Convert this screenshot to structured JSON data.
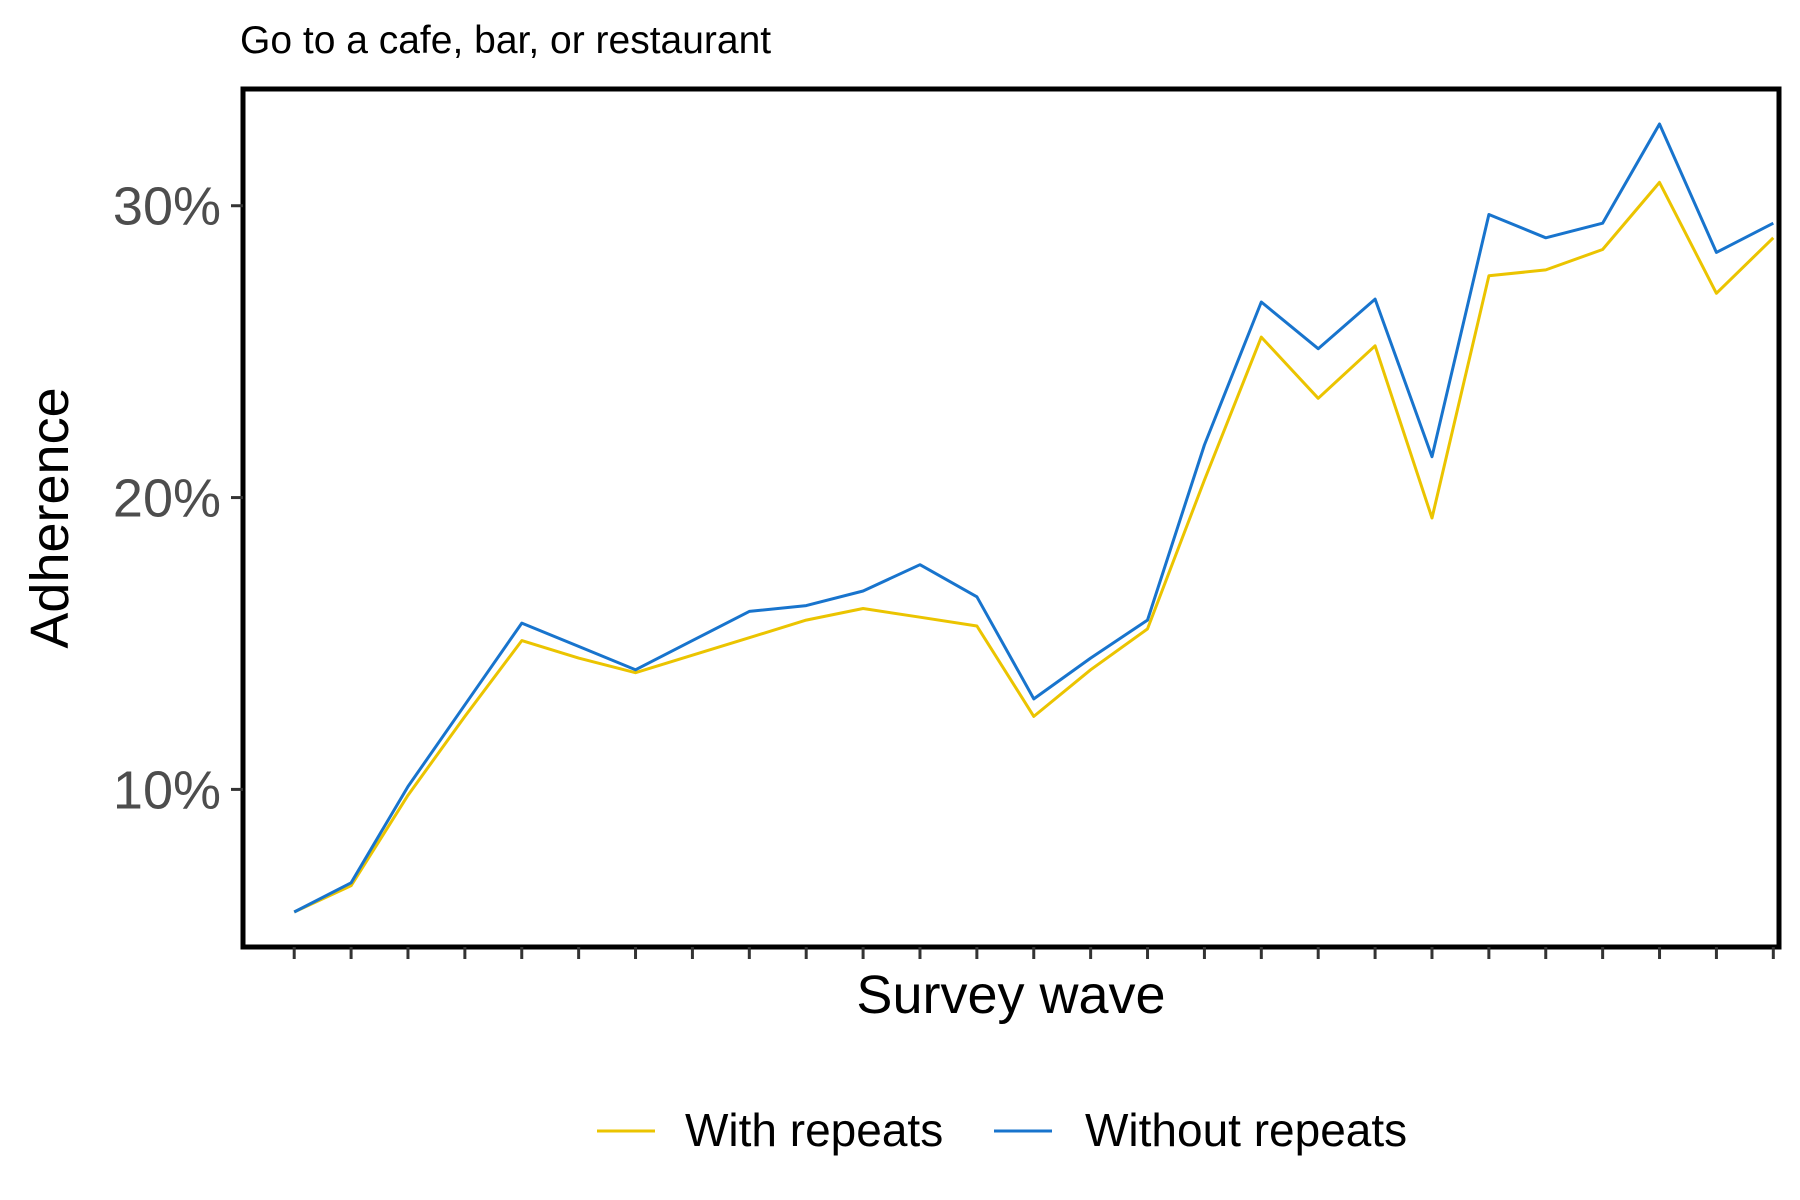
{
  "chart_data": {
    "type": "line",
    "title": "Go to a cafe, bar, or restaurant",
    "xlabel": "Survey wave",
    "ylabel": "Adherence",
    "x": [
      1,
      2,
      3,
      4,
      5,
      6,
      7,
      8,
      9,
      10,
      11,
      12,
      13,
      14,
      15,
      16,
      17,
      18,
      19,
      20,
      21,
      22,
      23,
      24,
      25,
      26,
      27
    ],
    "xlim": [
      0.1,
      27.1
    ],
    "ylim": [
      4.6,
      34.0
    ],
    "yticks": [
      10,
      20,
      30
    ],
    "ytick_labels": [
      "10%",
      "20%",
      "30%"
    ],
    "grid": false,
    "legend_position": "bottom",
    "series": [
      {
        "name": "With repeats",
        "color": "#EBC400",
        "values": [
          5.8,
          6.7,
          9.8,
          12.5,
          15.1,
          14.5,
          14.0,
          14.6,
          15.2,
          15.8,
          16.2,
          15.9,
          15.6,
          12.5,
          14.1,
          15.5,
          20.6,
          25.5,
          23.4,
          25.2,
          19.3,
          27.6,
          27.8,
          28.5,
          30.8,
          27.0,
          28.9
        ]
      },
      {
        "name": "Without repeats",
        "color": "#1874CD",
        "values": [
          5.8,
          6.8,
          10.1,
          12.9,
          15.7,
          14.9,
          14.1,
          15.1,
          16.1,
          16.3,
          16.8,
          17.7,
          16.6,
          13.1,
          14.5,
          15.8,
          21.8,
          26.7,
          25.1,
          26.8,
          21.4,
          29.7,
          28.9,
          29.4,
          32.8,
          28.4,
          29.4
        ]
      }
    ]
  }
}
